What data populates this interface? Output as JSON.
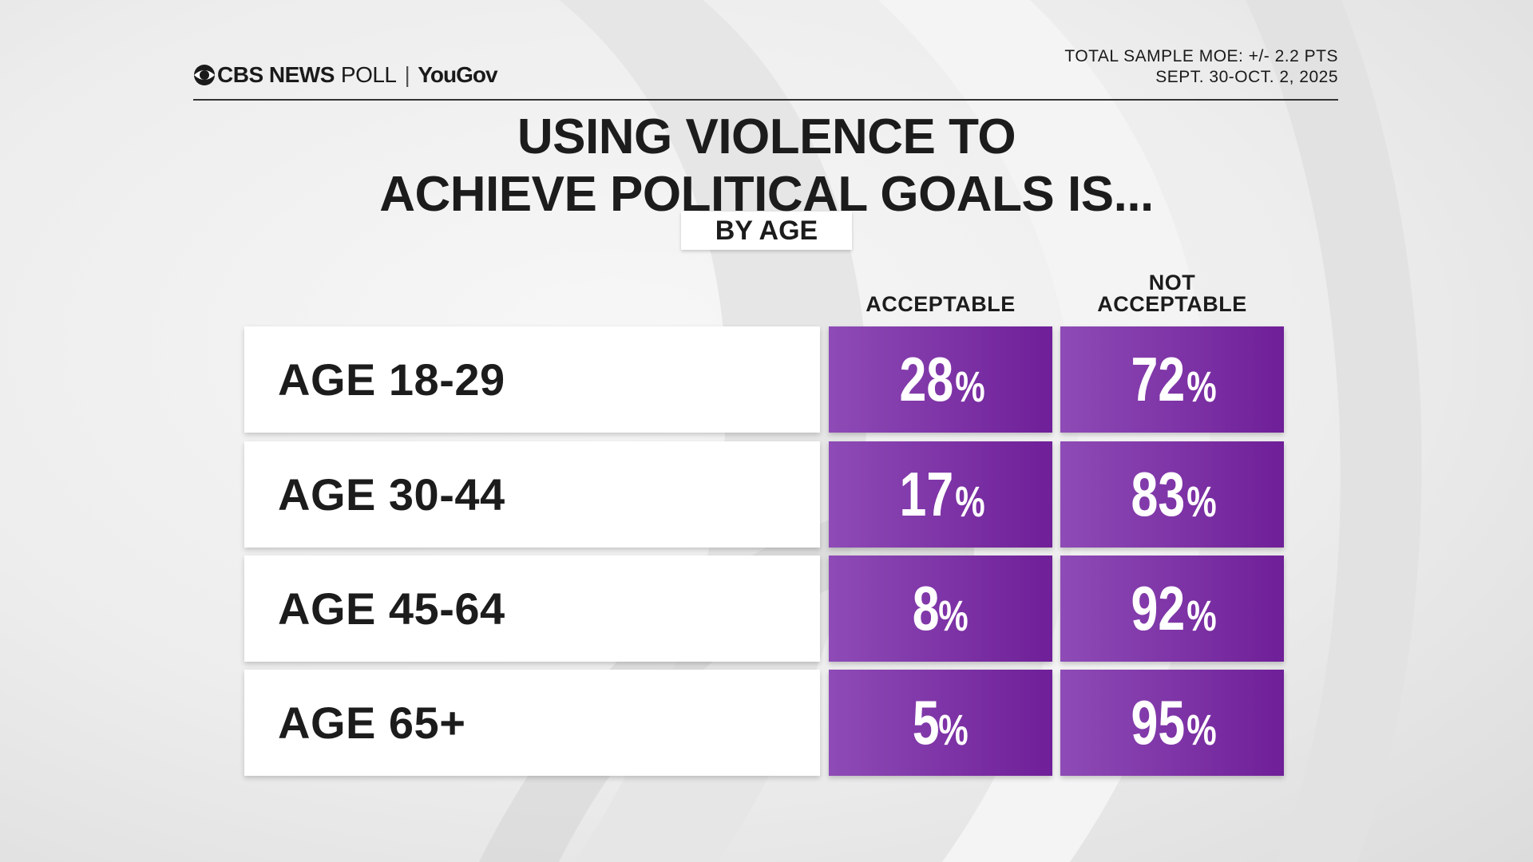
{
  "header": {
    "brand_cbs": "CBS NEWS",
    "brand_poll": "POLL",
    "brand_sep": "|",
    "brand_yougov": "YouGov",
    "moe": "TOTAL SAMPLE MOE: +/- 2.2 PTS",
    "dates": "SEPT. 30-OCT. 2, 2025"
  },
  "title_line1": "USING VIOLENCE TO",
  "title_line2": "ACHIEVE POLITICAL GOALS IS...",
  "subtitle": "BY AGE",
  "columns": {
    "acceptable": "ACCEPTABLE",
    "not_acceptable_line1": "NOT",
    "not_acceptable_line2": "ACCEPTABLE"
  },
  "colors": {
    "cell_light": "#8e4bb6",
    "cell_dark": "#6f1f98"
  },
  "chart_data": {
    "type": "table",
    "title": "USING VIOLENCE TO ACHIEVE POLITICAL GOALS IS...",
    "subtitle": "BY AGE",
    "columns": [
      "ACCEPTABLE",
      "NOT ACCEPTABLE"
    ],
    "rows": [
      {
        "label": "AGE 18-29",
        "acceptable": "28",
        "not_acceptable": "72"
      },
      {
        "label": "AGE 30-44",
        "acceptable": "17",
        "not_acceptable": "83"
      },
      {
        "label": "AGE 45-64",
        "acceptable": "8",
        "not_acceptable": "92"
      },
      {
        "label": "AGE 65+",
        "acceptable": "5",
        "not_acceptable": "95"
      }
    ],
    "unit": "%"
  }
}
